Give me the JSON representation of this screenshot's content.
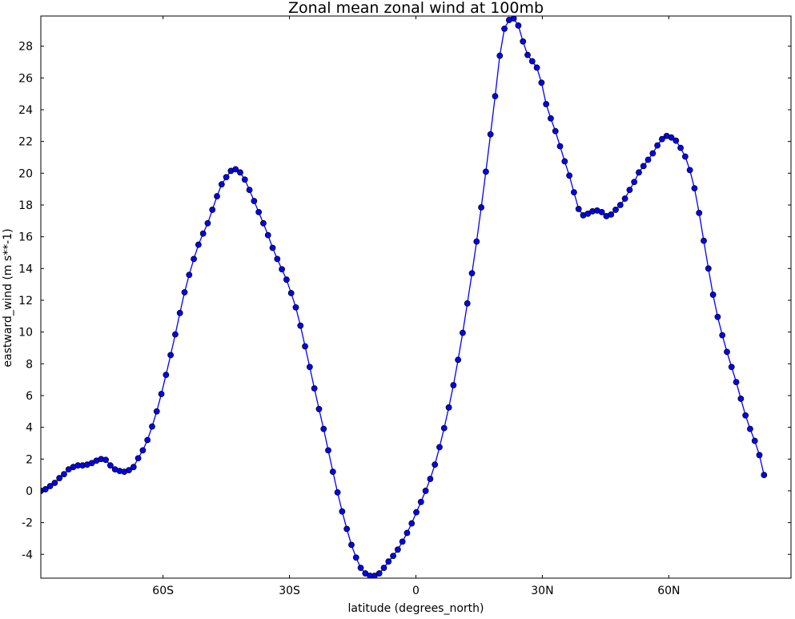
{
  "chart_data": {
    "type": "line",
    "title": "Zonal mean zonal wind at 100mb",
    "xlabel": "latitude (degrees_north)",
    "ylabel": "eastward_wind (m s**-1)",
    "xlim": [
      -89,
      89
    ],
    "ylim": [
      -5.5,
      29.9
    ],
    "x_ticks": [
      {
        "value": -60,
        "label": "60S"
      },
      {
        "value": -30,
        "label": "30S"
      },
      {
        "value": 0,
        "label": "0"
      },
      {
        "value": 30,
        "label": "30N"
      },
      {
        "value": 60,
        "label": "60N"
      }
    ],
    "y_ticks": [
      {
        "value": -4,
        "label": "-4"
      },
      {
        "value": -2,
        "label": "-2"
      },
      {
        "value": 0,
        "label": "0"
      },
      {
        "value": 2,
        "label": "2"
      },
      {
        "value": 4,
        "label": "4"
      },
      {
        "value": 6,
        "label": "6"
      },
      {
        "value": 8,
        "label": "8"
      },
      {
        "value": 10,
        "label": "10"
      },
      {
        "value": 12,
        "label": "12"
      },
      {
        "value": 14,
        "label": "14"
      },
      {
        "value": 16,
        "label": "16"
      },
      {
        "value": 18,
        "label": "18"
      },
      {
        "value": 20,
        "label": "20"
      },
      {
        "value": 22,
        "label": "22"
      },
      {
        "value": 24,
        "label": "24"
      },
      {
        "value": 26,
        "label": "26"
      },
      {
        "value": 28,
        "label": "28"
      }
    ],
    "grid": false,
    "legend": false,
    "series": [
      {
        "color": "#0000ff",
        "marker": "circle",
        "points": [
          [
            -89,
            0.0
          ],
          [
            -87.9,
            0.1
          ],
          [
            -86.8,
            0.3
          ],
          [
            -85.7,
            0.5
          ],
          [
            -84.6,
            0.8
          ],
          [
            -83.5,
            1.05
          ],
          [
            -82.4,
            1.35
          ],
          [
            -81.3,
            1.5
          ],
          [
            -80.2,
            1.6
          ],
          [
            -79.1,
            1.6
          ],
          [
            -78.0,
            1.65
          ],
          [
            -76.9,
            1.75
          ],
          [
            -75.8,
            1.9
          ],
          [
            -74.7,
            2.0
          ],
          [
            -73.6,
            1.95
          ],
          [
            -72.5,
            1.6
          ],
          [
            -71.4,
            1.35
          ],
          [
            -70.3,
            1.25
          ],
          [
            -69.2,
            1.2
          ],
          [
            -68.1,
            1.3
          ],
          [
            -67.0,
            1.5
          ],
          [
            -65.9,
            2.05
          ],
          [
            -64.8,
            2.55
          ],
          [
            -63.7,
            3.2
          ],
          [
            -62.6,
            4.05
          ],
          [
            -61.5,
            5.0
          ],
          [
            -60.4,
            6.1
          ],
          [
            -59.3,
            7.3
          ],
          [
            -58.2,
            8.55
          ],
          [
            -57.1,
            9.85
          ],
          [
            -56.0,
            11.2
          ],
          [
            -54.9,
            12.5
          ],
          [
            -53.8,
            13.6
          ],
          [
            -52.7,
            14.6
          ],
          [
            -51.6,
            15.5
          ],
          [
            -50.5,
            16.2
          ],
          [
            -49.4,
            16.85
          ],
          [
            -48.3,
            17.7
          ],
          [
            -47.2,
            18.55
          ],
          [
            -46.1,
            19.3
          ],
          [
            -45.0,
            19.75
          ],
          [
            -43.9,
            20.15
          ],
          [
            -42.8,
            20.25
          ],
          [
            -41.7,
            20.05
          ],
          [
            -40.6,
            19.6
          ],
          [
            -39.5,
            18.95
          ],
          [
            -38.4,
            18.25
          ],
          [
            -37.3,
            17.55
          ],
          [
            -36.2,
            16.85
          ],
          [
            -35.1,
            16.1
          ],
          [
            -34.0,
            15.3
          ],
          [
            -32.9,
            14.6
          ],
          [
            -31.8,
            13.95
          ],
          [
            -30.7,
            13.3
          ],
          [
            -29.6,
            12.45
          ],
          [
            -28.5,
            11.55
          ],
          [
            -27.4,
            10.4
          ],
          [
            -26.3,
            9.1
          ],
          [
            -25.2,
            7.8
          ],
          [
            -24.1,
            6.45
          ],
          [
            -23.0,
            5.15
          ],
          [
            -21.9,
            3.9
          ],
          [
            -20.8,
            2.55
          ],
          [
            -19.7,
            1.2
          ],
          [
            -18.6,
            -0.1
          ],
          [
            -17.5,
            -1.3
          ],
          [
            -16.4,
            -2.4
          ],
          [
            -15.3,
            -3.4
          ],
          [
            -14.2,
            -4.2
          ],
          [
            -13.1,
            -4.85
          ],
          [
            -12.0,
            -5.2
          ],
          [
            -10.9,
            -5.35
          ],
          [
            -9.8,
            -5.35
          ],
          [
            -8.7,
            -5.2
          ],
          [
            -7.6,
            -4.85
          ],
          [
            -6.5,
            -4.45
          ],
          [
            -5.4,
            -4.1
          ],
          [
            -4.3,
            -3.7
          ],
          [
            -3.2,
            -3.2
          ],
          [
            -2.1,
            -2.65
          ],
          [
            -1.0,
            -2.05
          ],
          [
            0.1,
            -1.35
          ],
          [
            1.2,
            -0.7
          ],
          [
            2.3,
            0.0
          ],
          [
            3.4,
            0.75
          ],
          [
            4.5,
            1.65
          ],
          [
            5.6,
            2.75
          ],
          [
            6.7,
            3.95
          ],
          [
            7.8,
            5.25
          ],
          [
            8.9,
            6.65
          ],
          [
            10.0,
            8.25
          ],
          [
            11.1,
            9.95
          ],
          [
            12.2,
            11.8
          ],
          [
            13.3,
            13.7
          ],
          [
            14.4,
            15.7
          ],
          [
            15.5,
            17.85
          ],
          [
            16.6,
            20.1
          ],
          [
            17.7,
            22.45
          ],
          [
            18.8,
            24.85
          ],
          [
            19.9,
            27.4
          ],
          [
            21.0,
            29.1
          ],
          [
            22.1,
            29.65
          ],
          [
            23.2,
            29.75
          ],
          [
            24.3,
            29.3
          ],
          [
            25.4,
            28.3
          ],
          [
            26.5,
            27.45
          ],
          [
            27.6,
            27.05
          ],
          [
            28.7,
            26.65
          ],
          [
            29.8,
            25.7
          ],
          [
            30.9,
            24.35
          ],
          [
            32.0,
            23.45
          ],
          [
            33.1,
            22.65
          ],
          [
            34.2,
            21.7
          ],
          [
            35.3,
            20.75
          ],
          [
            36.4,
            19.85
          ],
          [
            37.5,
            18.8
          ],
          [
            38.6,
            17.75
          ],
          [
            39.7,
            17.35
          ],
          [
            40.8,
            17.45
          ],
          [
            41.9,
            17.6
          ],
          [
            43.0,
            17.65
          ],
          [
            44.1,
            17.55
          ],
          [
            45.2,
            17.3
          ],
          [
            46.3,
            17.4
          ],
          [
            47.4,
            17.7
          ],
          [
            48.5,
            18.0
          ],
          [
            49.6,
            18.4
          ],
          [
            50.7,
            18.95
          ],
          [
            51.8,
            19.45
          ],
          [
            52.9,
            20.05
          ],
          [
            54.0,
            20.45
          ],
          [
            55.1,
            20.85
          ],
          [
            56.2,
            21.25
          ],
          [
            57.3,
            21.75
          ],
          [
            58.4,
            22.15
          ],
          [
            59.5,
            22.35
          ],
          [
            60.6,
            22.25
          ],
          [
            61.7,
            22.05
          ],
          [
            62.8,
            21.6
          ],
          [
            63.9,
            21.05
          ],
          [
            65.0,
            20.2
          ],
          [
            66.1,
            19.05
          ],
          [
            67.2,
            17.5
          ],
          [
            68.3,
            15.75
          ],
          [
            69.4,
            14.0
          ],
          [
            70.5,
            12.35
          ],
          [
            71.6,
            10.95
          ],
          [
            72.7,
            9.8
          ],
          [
            73.8,
            8.75
          ],
          [
            74.9,
            7.8
          ],
          [
            76.0,
            6.85
          ],
          [
            77.1,
            5.8
          ],
          [
            78.2,
            4.75
          ],
          [
            79.3,
            3.9
          ],
          [
            80.4,
            3.15
          ],
          [
            81.5,
            2.25
          ],
          [
            82.6,
            1.0
          ]
        ]
      }
    ]
  }
}
